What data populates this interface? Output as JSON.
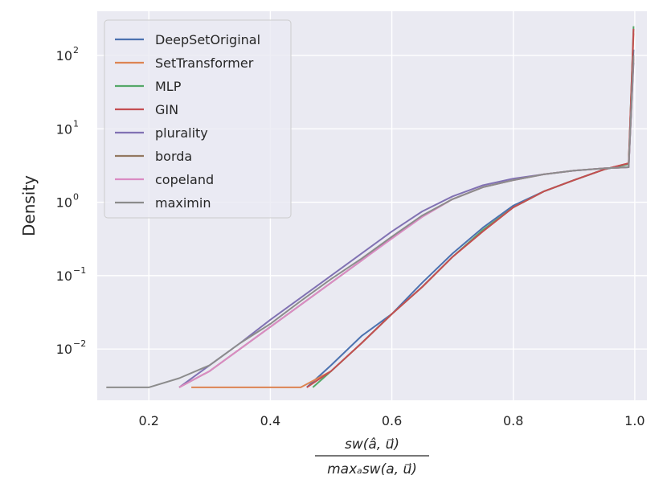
{
  "chart_data": {
    "type": "line",
    "title": "",
    "xlabel_numerator": "sw(â, u⃗)",
    "xlabel_denominator": "maxₐsw(a, u⃗)",
    "ylabel": "Density",
    "y_scale": "log",
    "xlim": [
      0.115,
      1.02
    ],
    "ylim": [
      0.002,
      400
    ],
    "x_ticks": [
      0.2,
      0.4,
      0.6,
      0.8,
      1.0
    ],
    "x_tick_labels": [
      "0.2",
      "0.4",
      "0.6",
      "0.8",
      "1.0"
    ],
    "y_ticks": [
      0.01,
      0.1,
      1,
      10,
      100
    ],
    "y_tick_bases": [
      "10",
      "10",
      "10",
      "10",
      "10"
    ],
    "y_tick_exponents": [
      "−2",
      "−1",
      "0",
      "1",
      "2"
    ],
    "grid": true,
    "legend_position": "top-left",
    "series": [
      {
        "name": "DeepSetOriginal",
        "color": "#4c72b0",
        "x": [
          0.46,
          0.5,
          0.55,
          0.6,
          0.65,
          0.7,
          0.75,
          0.8,
          0.85,
          0.9,
          0.95,
          0.99,
          0.998
        ],
        "y": [
          0.003,
          0.006,
          0.015,
          0.03,
          0.08,
          0.2,
          0.45,
          0.9,
          1.4,
          2.0,
          2.8,
          3.3,
          120
        ]
      },
      {
        "name": "SetTransformer",
        "color": "#dd8452",
        "x": [
          0.27,
          0.35,
          0.45,
          0.5,
          0.55,
          0.6,
          0.65,
          0.7,
          0.75,
          0.8,
          0.85,
          0.9,
          0.95,
          0.99,
          0.998
        ],
        "y": [
          0.003,
          0.003,
          0.003,
          0.005,
          0.012,
          0.03,
          0.07,
          0.18,
          0.4,
          0.85,
          1.4,
          2.0,
          2.8,
          3.4,
          200
        ]
      },
      {
        "name": "MLP",
        "color": "#55a868",
        "x": [
          0.47,
          0.5,
          0.55,
          0.6,
          0.65,
          0.7,
          0.75,
          0.8,
          0.85,
          0.9,
          0.95,
          0.99,
          0.998
        ],
        "y": [
          0.003,
          0.005,
          0.012,
          0.03,
          0.07,
          0.18,
          0.42,
          0.85,
          1.4,
          2.0,
          2.8,
          3.3,
          250
        ]
      },
      {
        "name": "GIN",
        "color": "#c44e52",
        "x": [
          0.46,
          0.5,
          0.55,
          0.6,
          0.65,
          0.7,
          0.75,
          0.8,
          0.85,
          0.9,
          0.95,
          0.99,
          0.998
        ],
        "y": [
          0.003,
          0.005,
          0.012,
          0.03,
          0.07,
          0.18,
          0.4,
          0.85,
          1.4,
          2.0,
          2.8,
          3.4,
          230
        ]
      },
      {
        "name": "plurality",
        "color": "#8172b3",
        "x": [
          0.25,
          0.3,
          0.35,
          0.4,
          0.45,
          0.5,
          0.55,
          0.6,
          0.65,
          0.7,
          0.75,
          0.8,
          0.85,
          0.9,
          0.95,
          0.99,
          0.998
        ],
        "y": [
          0.003,
          0.006,
          0.012,
          0.025,
          0.05,
          0.1,
          0.2,
          0.4,
          0.75,
          1.2,
          1.7,
          2.1,
          2.4,
          2.7,
          2.9,
          3.0,
          80
        ]
      },
      {
        "name": "borda",
        "color": "#937860",
        "x": [
          0.25,
          0.3,
          0.35,
          0.4,
          0.45,
          0.5,
          0.55,
          0.6,
          0.65,
          0.7,
          0.75,
          0.8,
          0.85,
          0.9,
          0.95,
          0.99,
          0.998
        ],
        "y": [
          0.003,
          0.005,
          0.01,
          0.02,
          0.04,
          0.08,
          0.16,
          0.33,
          0.65,
          1.1,
          1.6,
          2.0,
          2.4,
          2.7,
          2.9,
          3.0,
          90
        ]
      },
      {
        "name": "copeland",
        "color": "#da8bc3",
        "x": [
          0.25,
          0.3,
          0.35,
          0.4,
          0.45,
          0.5,
          0.55,
          0.6,
          0.65,
          0.7,
          0.75,
          0.8,
          0.85,
          0.9,
          0.95,
          0.99,
          0.998
        ],
        "y": [
          0.003,
          0.005,
          0.01,
          0.02,
          0.04,
          0.08,
          0.16,
          0.32,
          0.63,
          1.1,
          1.6,
          2.0,
          2.4,
          2.7,
          2.9,
          3.0,
          95
        ]
      },
      {
        "name": "maximin",
        "color": "#8c8c8c",
        "x": [
          0.13,
          0.2,
          0.25,
          0.3,
          0.35,
          0.4,
          0.45,
          0.5,
          0.55,
          0.6,
          0.65,
          0.7,
          0.75,
          0.8,
          0.85,
          0.9,
          0.95,
          0.99,
          0.998
        ],
        "y": [
          0.003,
          0.003,
          0.004,
          0.006,
          0.012,
          0.022,
          0.045,
          0.09,
          0.17,
          0.34,
          0.66,
          1.1,
          1.6,
          2.0,
          2.4,
          2.7,
          2.9,
          3.0,
          100
        ]
      }
    ]
  }
}
